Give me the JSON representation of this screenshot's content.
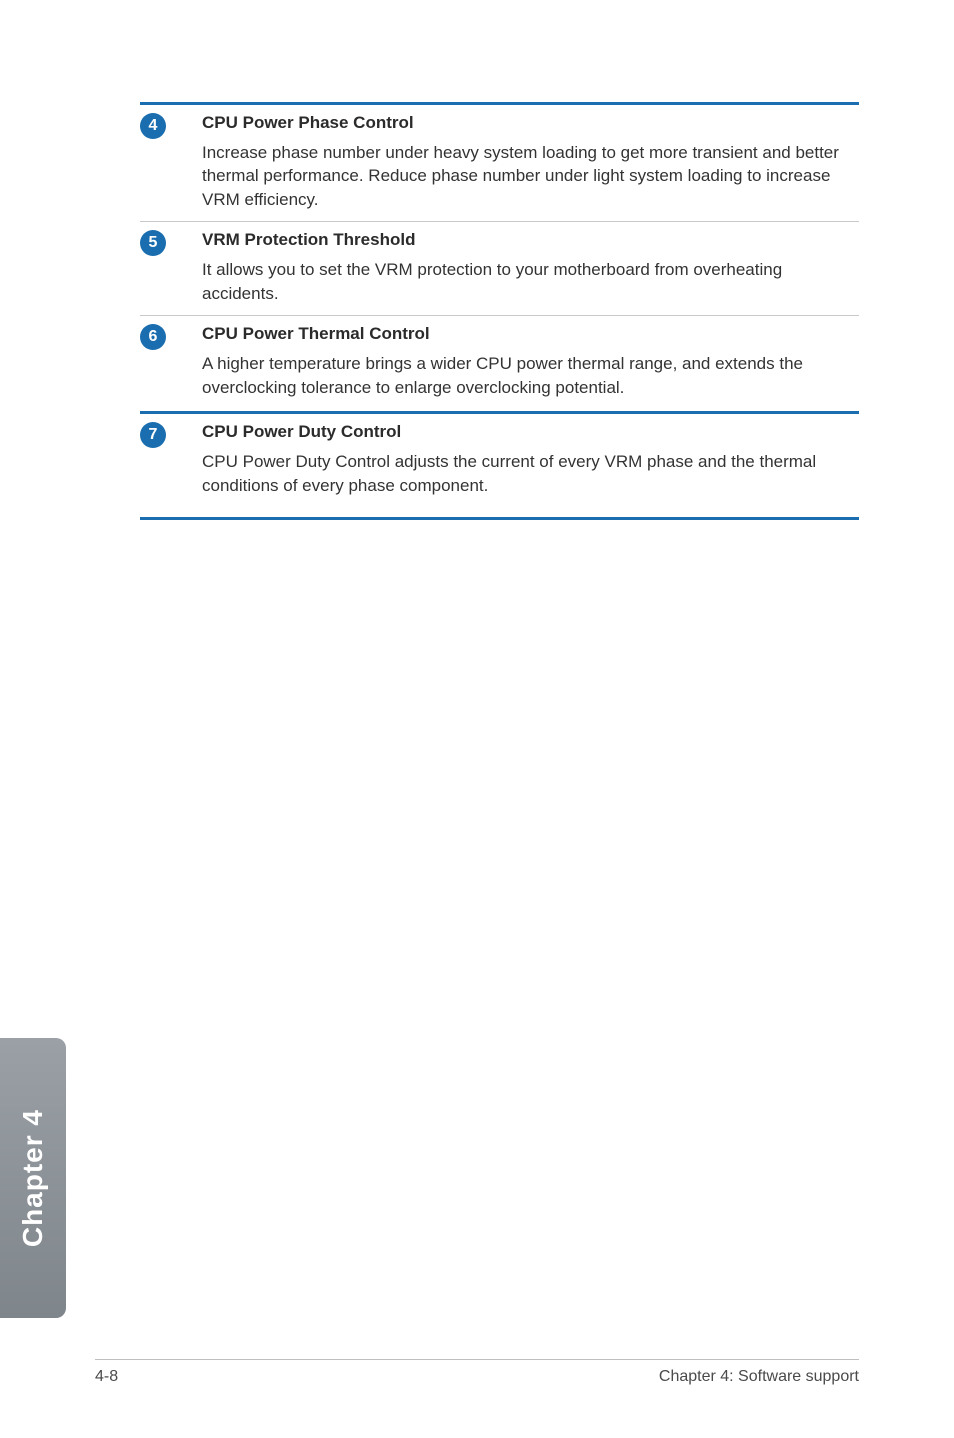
{
  "items": [
    {
      "num": "4",
      "title": "CPU Power Phase Control",
      "desc": "Increase phase number under heavy system loading to get more transient and better thermal performance. Reduce phase number under light system loading to increase VRM efficiency."
    },
    {
      "num": "5",
      "title": "VRM Protection Threshold",
      "desc": "It allows you to set the VRM protection to your motherboard from overheating accidents."
    },
    {
      "num": "6",
      "title": "CPU Power Thermal Control",
      "desc": "A higher temperature brings a wider CPU power thermal range, and extends the overclocking tolerance to enlarge overclocking potential."
    },
    {
      "num": "7",
      "title": "CPU Power Duty Control",
      "desc": "CPU Power Duty Control adjusts the current of every VRM phase and the thermal conditions of every phase component."
    }
  ],
  "side_tab": "Chapter 4",
  "footer": {
    "left": "4-8",
    "right": "Chapter 4: Software support"
  },
  "colors": {
    "accent": "#1a6eaf",
    "badge_text": "#ffffff",
    "rule_light": "#c9c9c9",
    "tab_grad_top": "#9aa0a6",
    "tab_grad_bottom": "#7e858b"
  }
}
